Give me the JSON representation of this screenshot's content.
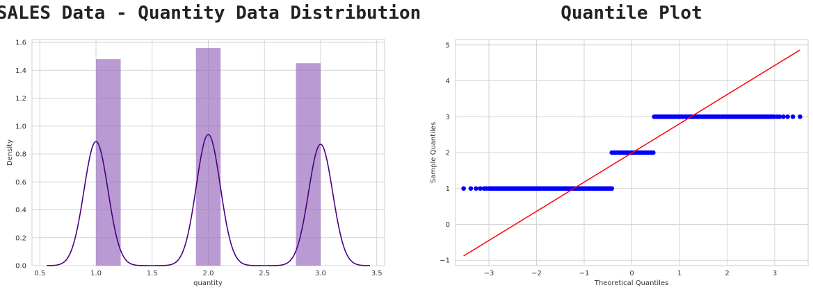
{
  "chart_data": [
    {
      "type": "bar",
      "title": "SALES Data - Quantity Data Distribution",
      "xlabel": "quantity",
      "ylabel": "Density",
      "xlim": [
        0.43,
        3.57
      ],
      "ylim": [
        0,
        1.62
      ],
      "xticks": [
        "0.5",
        "1.0",
        "1.5",
        "2.0",
        "2.5",
        "3.0",
        "3.5"
      ],
      "yticks": [
        "0.0",
        "0.2",
        "0.4",
        "0.6",
        "0.8",
        "1.0",
        "1.2",
        "1.4",
        "1.6"
      ],
      "grid": true,
      "histogram": {
        "color": "#9b6fbf",
        "bins": [
          {
            "x0": 1.0,
            "x1": 1.22,
            "density": 1.48
          },
          {
            "x0": 1.89,
            "x1": 2.11,
            "density": 1.56
          },
          {
            "x0": 2.78,
            "x1": 3.0,
            "density": 1.45
          }
        ]
      },
      "kde": {
        "color": "#4b0082",
        "x_range": [
          0.56,
          3.44
        ],
        "peaks": [
          {
            "center": 1.0,
            "height": 0.89
          },
          {
            "center": 2.0,
            "height": 0.94
          },
          {
            "center": 3.0,
            "height": 0.87
          }
        ],
        "width": 0.107
      }
    },
    {
      "type": "scatter",
      "title": "Quantile Plot",
      "xlabel": "Theoretical Quantiles",
      "ylabel": "Sample Quantiles",
      "xlim": [
        -3.7,
        3.7
      ],
      "ylim": [
        -1.15,
        5.15
      ],
      "xticks": [
        "−3",
        "−2",
        "−1",
        "0",
        "1",
        "2",
        "3"
      ],
      "yticks": [
        "−1",
        "0",
        "1",
        "2",
        "3",
        "4",
        "5"
      ],
      "grid": true,
      "point_color": "#0000ff",
      "line_color": "#ff0000",
      "reference_line": [
        [
          -3.53,
          -0.88
        ],
        [
          3.53,
          4.86
        ]
      ],
      "bands": [
        {
          "y": 1,
          "x_from": -3.0,
          "x_to": -0.42,
          "outliers": [
            -3.53,
            -3.38,
            -3.27,
            -3.18,
            -3.1,
            -3.05
          ]
        },
        {
          "y": 2,
          "x_from": -0.42,
          "x_to": 0.47,
          "outliers": []
        },
        {
          "y": 3,
          "x_from": 0.47,
          "x_to": 3.0,
          "outliers": [
            3.05,
            3.1,
            3.18,
            3.27,
            3.38,
            3.53
          ]
        }
      ]
    }
  ]
}
